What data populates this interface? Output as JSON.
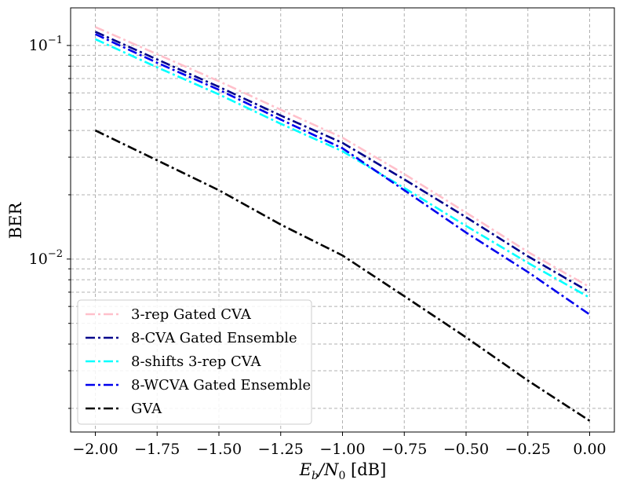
{
  "chart_data": {
    "type": "line",
    "xlabel_main": "E",
    "xlabel_sub_b": "b",
    "xlabel_mid": "/N",
    "xlabel_sub_0": "0",
    "xlabel_unit": " [dB]",
    "ylabel": "BER",
    "x": [
      -2.0,
      -1.75,
      -1.5,
      -1.25,
      -1.0,
      -0.75,
      -0.5,
      -0.25,
      0.0
    ],
    "xticks": [
      -2.0,
      -1.75,
      -1.5,
      -1.25,
      -1.0,
      -0.75,
      -0.5,
      -0.25,
      0.0
    ],
    "xtick_labels": [
      "−2.00",
      "−1.75",
      "−1.50",
      "−1.25",
      "−1.00",
      "−0.75",
      "−0.50",
      "−0.25",
      "0.00"
    ],
    "xlim": [
      -2.1,
      0.1
    ],
    "yscale": "log",
    "ylim": [
      0.00155,
      0.15
    ],
    "ytick_labels": [
      {
        "base": "10",
        "exp": "−1",
        "value": 0.1
      },
      {
        "base": "10",
        "exp": "−2",
        "value": 0.01
      }
    ],
    "grid": true,
    "legend_position": "lower-left",
    "series": [
      {
        "name": "3-rep Gated CVA",
        "color": "#ffc0cb",
        "values": [
          0.122,
          0.091,
          0.068,
          0.05,
          0.037,
          0.025,
          0.0165,
          0.0108,
          0.0074
        ]
      },
      {
        "name": "8-CVA Gated Ensemble",
        "color": "#00008b",
        "values": [
          0.116,
          0.086,
          0.064,
          0.047,
          0.035,
          0.0236,
          0.0157,
          0.0103,
          0.007
        ]
      },
      {
        "name": "8-shifts 3-rep CVA",
        "color": "#00ffff",
        "values": [
          0.107,
          0.079,
          0.059,
          0.043,
          0.032,
          0.0215,
          0.0143,
          0.0096,
          0.0066
        ]
      },
      {
        "name": "8-WCVA Gated Ensemble",
        "color": "#0000ee",
        "values": [
          0.113,
          0.083,
          0.062,
          0.045,
          0.033,
          0.021,
          0.0133,
          0.0087,
          0.0055
        ]
      },
      {
        "name": "GVA",
        "color": "#000000",
        "values": [
          0.04,
          0.029,
          0.021,
          0.0145,
          0.0104,
          0.0067,
          0.0043,
          0.0027,
          0.00175
        ]
      }
    ]
  }
}
